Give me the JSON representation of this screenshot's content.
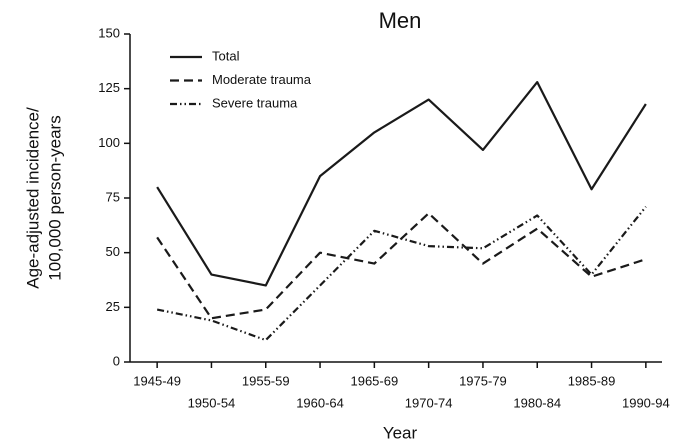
{
  "chart_data": {
    "type": "line",
    "title": "Men",
    "xlabel": "Year",
    "ylabel": [
      "Age-adjusted incidence/",
      "100,000 person-years"
    ],
    "categories": [
      "1945-49",
      "1950-54",
      "1955-59",
      "1960-64",
      "1965-69",
      "1970-74",
      "1975-79",
      "1980-84",
      "1985-89",
      "1990-94"
    ],
    "series": [
      {
        "name": "Total",
        "color": "#1a1a1a",
        "dash": "none",
        "values": [
          80,
          40,
          35,
          85,
          105,
          120,
          97,
          128,
          79,
          118
        ]
      },
      {
        "name": "Moderate trauma",
        "color": "#1a1a1a",
        "dash": "9,5",
        "values": [
          57,
          20,
          24,
          50,
          45,
          68,
          45,
          61,
          39,
          47
        ]
      },
      {
        "name": "Severe trauma",
        "color": "#1a1a1a",
        "dash": "7,3,1.5,3,1.5,3",
        "values": [
          24,
          19,
          10,
          35,
          60,
          53,
          52,
          67,
          40,
          71
        ]
      }
    ],
    "ylim": [
      0,
      150
    ],
    "yticks": [
      0,
      25,
      50,
      75,
      100,
      125,
      150
    ],
    "legend": "upper-left",
    "grid": false
  }
}
